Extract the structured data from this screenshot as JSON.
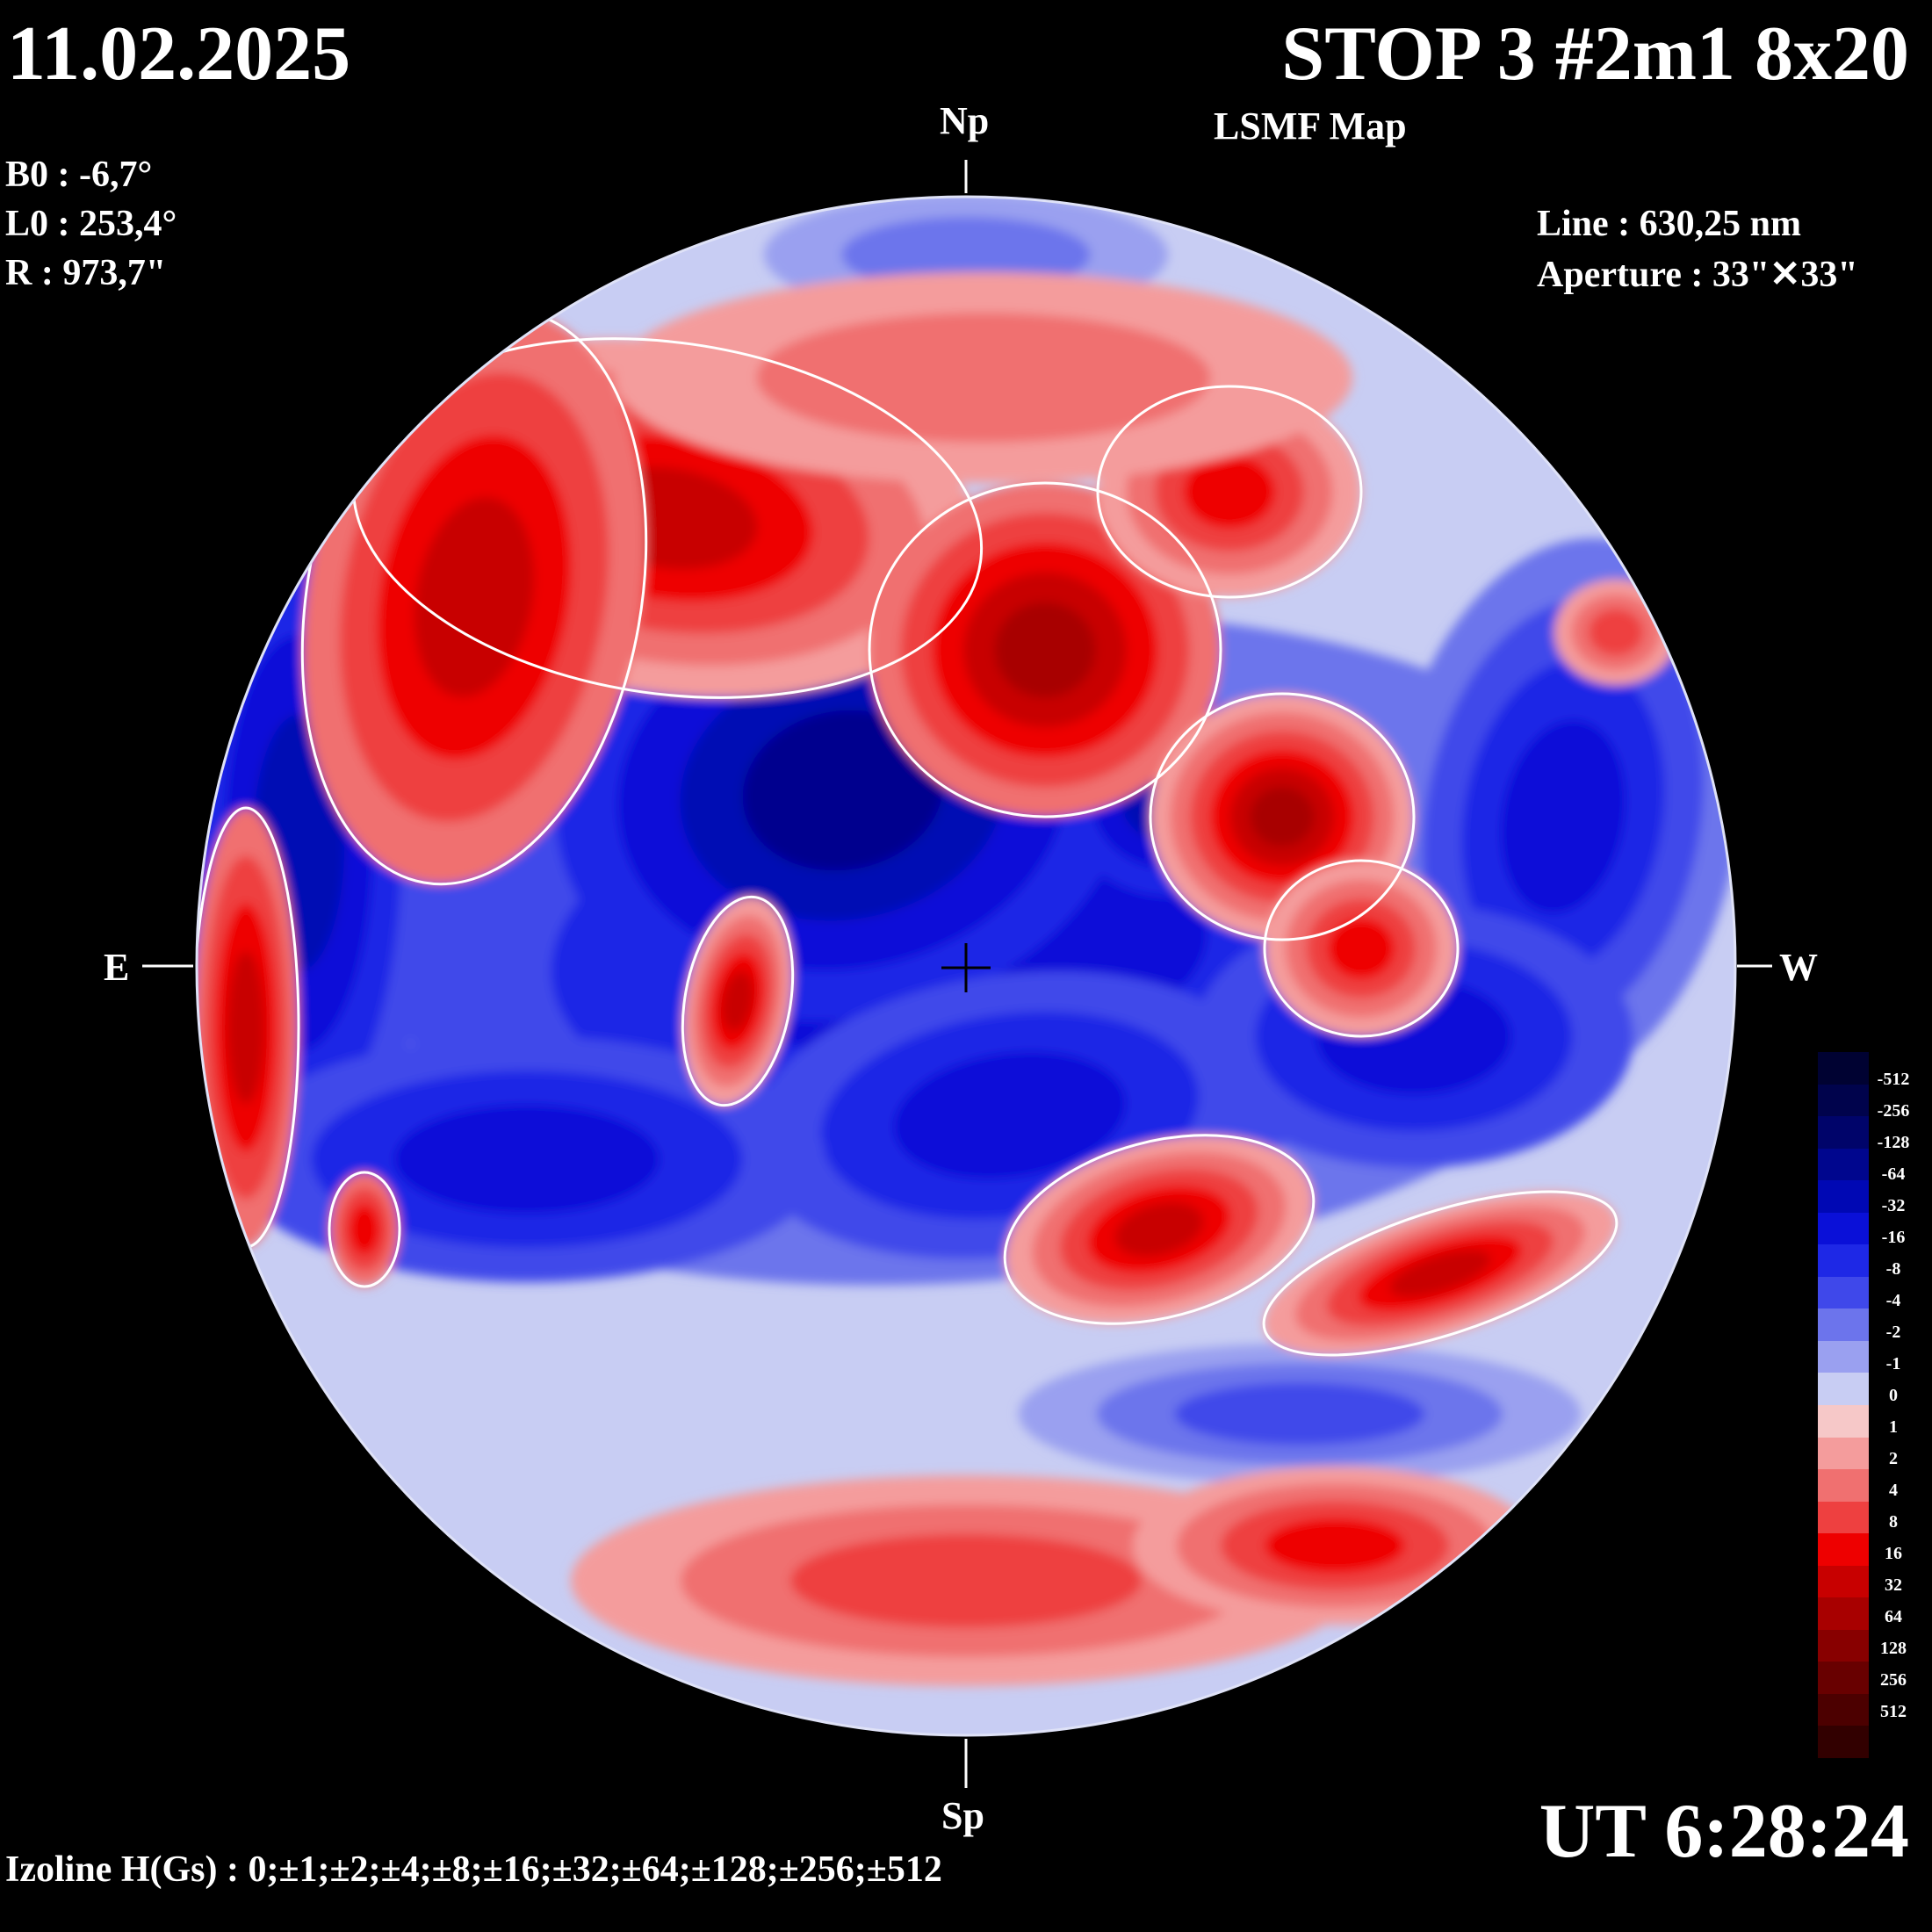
{
  "header": {
    "date": "11.02.2025",
    "title": "STOP 3 #2m1 8x20",
    "subtitle": "LSMF  Map"
  },
  "params": {
    "b0": "B0 : -6,7°",
    "l0": "L0 : 253,4°",
    "radius": "R  : 973,7\"",
    "line": "Line :  630,25 nm",
    "aperture": "Aperture : 33\"✕33\""
  },
  "compass": {
    "north": "Np",
    "south": "Sp",
    "east": "E",
    "west": "W"
  },
  "footer": {
    "time": "UT 6:28:24",
    "izoline": "Izoline H(Gs) : 0;±1;±2;±4;±8;±16;±32;±64;±128;±256;±512"
  },
  "colors": {
    "background": "#000000",
    "neg": [
      "#c8cdf3",
      "#9aa0f0",
      "#6c74ec",
      "#3f48ea",
      "#1e28e6",
      "#0a10d8",
      "#0008b4",
      "#00068e",
      "#00046a",
      "#00034c",
      "#000232"
    ],
    "pos": [
      "#f6c8c8",
      "#f49c9c",
      "#f07070",
      "#ee4040",
      "#ee0000",
      "#c80000",
      "#a80000",
      "#880000",
      "#680000",
      "#4c0000",
      "#320000"
    ],
    "isoline_zero": "#ffffff"
  },
  "colorbar": {
    "labels": [
      "-512",
      "-256",
      "-128",
      "-64",
      "-32",
      "-16",
      "-8",
      "-4",
      "-2",
      "-1",
      "0",
      "1",
      "2",
      "4",
      "8",
      "16",
      "32",
      "64",
      "128",
      "256",
      "512"
    ]
  },
  "regions": {
    "positive": [
      {
        "name": "north-east red band",
        "level": 4
      },
      {
        "name": "east limb red",
        "level": 5
      },
      {
        "name": "center-north red",
        "level": 6
      },
      {
        "name": "west red pair",
        "level": 6
      },
      {
        "name": "south-west red",
        "level": 5
      },
      {
        "name": "south red",
        "level": 5
      },
      {
        "name": "small east red",
        "level": 5
      },
      {
        "name": "south limb pink",
        "level": 1
      }
    ],
    "negative": [
      {
        "name": "central blue",
        "level": 5
      },
      {
        "name": "east limb blue",
        "level": 5
      },
      {
        "name": "west limb blue",
        "level": 4
      },
      {
        "name": "north pole pale blue",
        "level": 1
      },
      {
        "name": "south band blue",
        "level": 3
      }
    ]
  }
}
